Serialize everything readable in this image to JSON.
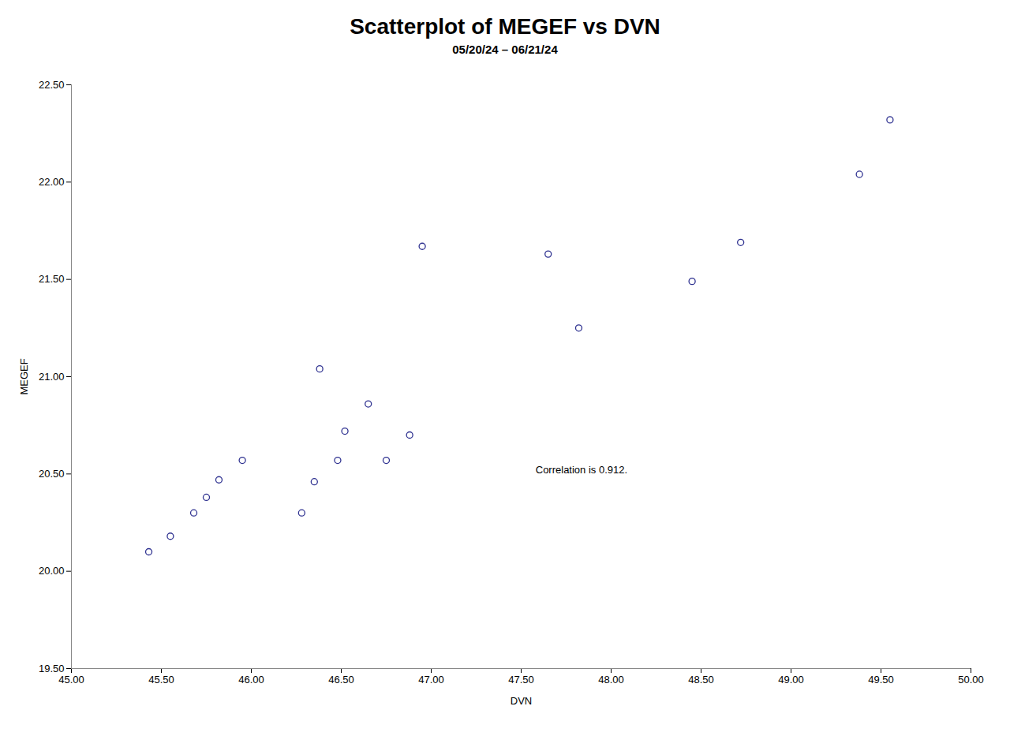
{
  "chart_data": {
    "type": "scatter",
    "title": "Scatterplot of MEGEF vs DVN",
    "subtitle": "05/20/24 – 06/21/24",
    "xlabel": "DVN",
    "ylabel": "MEGEF",
    "x": [
      45.43,
      45.55,
      45.68,
      45.75,
      45.82,
      45.95,
      46.28,
      46.35,
      46.38,
      46.48,
      46.52,
      46.65,
      46.75,
      46.88,
      46.95,
      47.65,
      47.82,
      48.45,
      48.72,
      49.38,
      49.55
    ],
    "values": [
      20.1,
      20.18,
      20.3,
      20.38,
      20.47,
      20.57,
      20.3,
      20.46,
      21.04,
      20.57,
      20.72,
      20.86,
      20.57,
      20.7,
      21.67,
      21.63,
      21.25,
      21.49,
      21.69,
      22.04,
      22.32
    ],
    "color": "#2E3190",
    "marker": "open circle",
    "xlim": [
      45.0,
      50.0
    ],
    "ylim": [
      19.5,
      22.5
    ],
    "xticks": [
      {
        "value": 45.0,
        "label": "45.00"
      },
      {
        "value": 45.5,
        "label": "45.50"
      },
      {
        "value": 46.0,
        "label": "46.00"
      },
      {
        "value": 46.5,
        "label": "46.50"
      },
      {
        "value": 47.0,
        "label": "47.00"
      },
      {
        "value": 47.5,
        "label": "47.50"
      },
      {
        "value": 48.0,
        "label": "48.00"
      },
      {
        "value": 48.5,
        "label": "48.50"
      },
      {
        "value": 49.0,
        "label": "49.00"
      },
      {
        "value": 49.5,
        "label": "49.50"
      },
      {
        "value": 50.0,
        "label": "50.00"
      }
    ],
    "yticks": [
      {
        "value": 19.5,
        "label": "19.50"
      },
      {
        "value": 20.0,
        "label": "20.00"
      },
      {
        "value": 20.5,
        "label": "20.50"
      },
      {
        "value": 21.0,
        "label": "21.00"
      },
      {
        "value": 21.5,
        "label": "21.50"
      },
      {
        "value": 22.0,
        "label": "22.00"
      },
      {
        "value": 22.5,
        "label": "22.50"
      }
    ],
    "annotations": [
      {
        "text": "Correlation is 0.912.",
        "x": 47.58,
        "y": 20.505
      }
    ],
    "grid": false
  }
}
